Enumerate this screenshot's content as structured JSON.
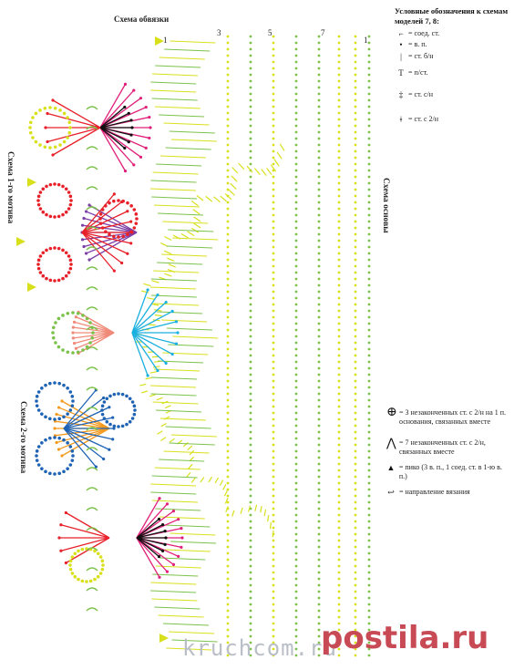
{
  "titles": {
    "edging": "Схема обвязки",
    "motif1": "Схема 1-го мотива",
    "base": "Схема основы",
    "motif2": "Схема 2-го мотива"
  },
  "legend_top": {
    "title": "Условные обозначения к схемам моделей 7, 8:",
    "items": [
      {
        "icon": "slip-stitch-icon",
        "label": "= соед. ст."
      },
      {
        "icon": "chain-stitch-icon",
        "label": "= в. п."
      },
      {
        "icon": "single-crochet-icon",
        "label": "= ст. б/н"
      },
      {
        "icon": "half-double-crochet-icon",
        "label": "= п/ст."
      },
      {
        "icon": "double-crochet-icon",
        "label": "= ст. с/н"
      },
      {
        "icon": "treble-crochet-icon",
        "label": "= ст. с 2/н"
      }
    ]
  },
  "legend_bottom": {
    "items": [
      {
        "icon": "cluster-3-icon",
        "label": "= 3 незаконченных ст. с 2/н на 1 п. основания, связанных вместе"
      },
      {
        "icon": "cluster-7-icon",
        "label": "= 7 незаконченных ст. с 2/н, связанных вместе"
      },
      {
        "icon": "picot-icon",
        "label": "= пико (3 в. п., 1 соед. ст. в 1-ю в. п.)"
      },
      {
        "icon": "direction-arrow-icon",
        "label": "= направление вязания"
      }
    ]
  },
  "row_numbers": [
    "1",
    "3",
    "5",
    "7",
    "1"
  ],
  "watermarks": {
    "site": "kruchcom.ru",
    "brand": "postila.ru"
  },
  "colors": {
    "yellow": "#d8e01c",
    "green": "#7cc24a",
    "red": "#e8202a",
    "magenta": "#e0207a",
    "purple": "#7b3fa6",
    "blue": "#1f63b5",
    "cyan": "#1ab0e0",
    "orange": "#f39a1e",
    "salmon": "#f08a78",
    "black": "#111111"
  }
}
